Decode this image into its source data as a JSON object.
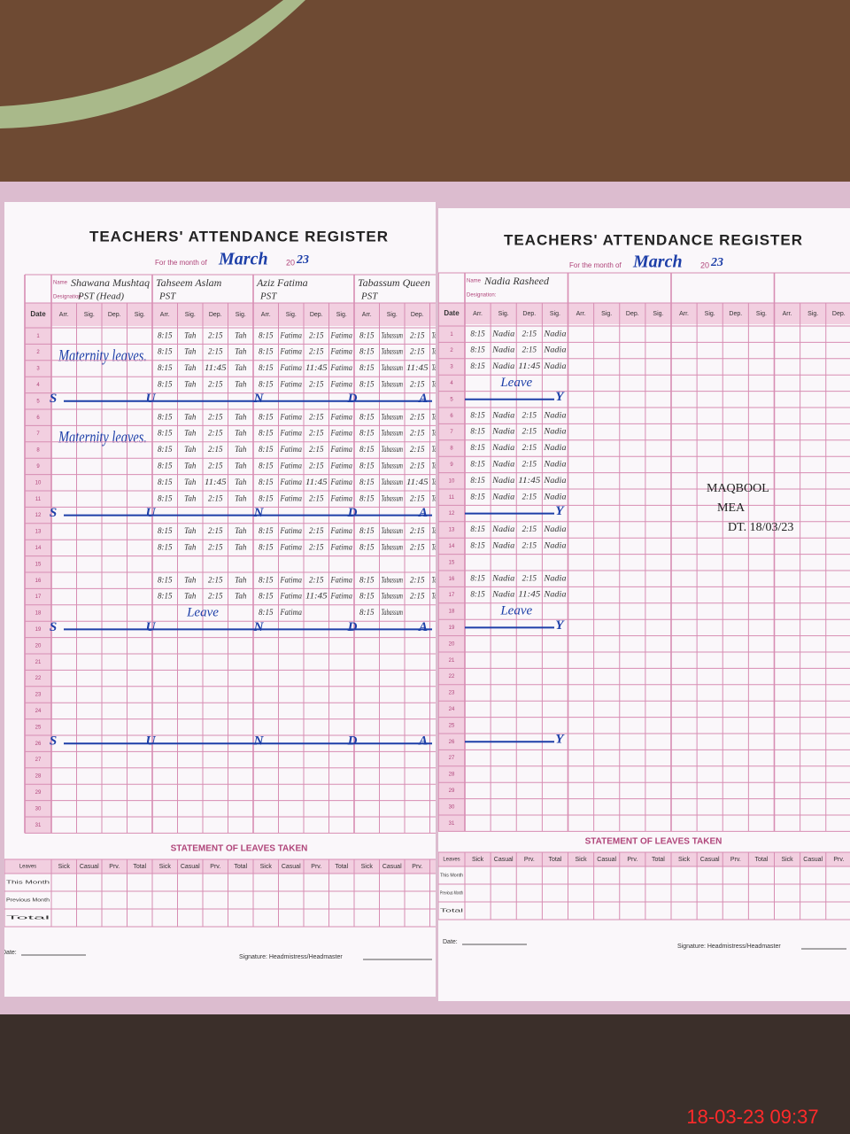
{
  "left_page": {
    "title": "TEACHERS' ATTENDANCE REGISTER",
    "month_label": "For the month of",
    "month": "March",
    "year_prefix": "20",
    "year": "23",
    "name_label": "Name",
    "designation_label": "Designation",
    "date_header": "Date",
    "column_headers": [
      "Arr.",
      "Sig.",
      "Dep.",
      "Sig."
    ],
    "dates": [
      1,
      2,
      3,
      4,
      5,
      6,
      7,
      8,
      9,
      10,
      11,
      12,
      13,
      14,
      15,
      16,
      17,
      18,
      19,
      20,
      21,
      22,
      23,
      24,
      25,
      26,
      27,
      28,
      29,
      30,
      31
    ],
    "teachers": [
      {
        "name": "Shawana Mushtaq",
        "designation": "PST (Head)",
        "notes": [
          "Maternity leaves.",
          "Maternity leaves."
        ]
      },
      {
        "name": "Tahseem Aslam",
        "designation": "PST",
        "entries": [
          [
            "8:15",
            "Tah",
            "2:15",
            "Tah"
          ],
          [
            "8:15",
            "Tah",
            "2:15",
            "Tah"
          ],
          [
            "8:15",
            "Tah",
            "11:45",
            "Tah"
          ],
          [
            "8:15",
            "Tah",
            "2:15",
            "Tah"
          ],
          null,
          [
            "8:15",
            "Tah",
            "2:15",
            "Tah"
          ],
          [
            "8:15",
            "Tah",
            "2:15",
            "Tah"
          ],
          [
            "8:15",
            "Tah",
            "2:15",
            "Tah"
          ],
          [
            "8:15",
            "Tah",
            "2:15",
            "Tah"
          ],
          [
            "8:15",
            "Tah",
            "11:45",
            "Tah"
          ],
          [
            "8:15",
            "Tah",
            "2:15",
            "Tah"
          ],
          null,
          [
            "8:15",
            "Tah",
            "2:15",
            "Tah"
          ],
          [
            "8:15",
            "Tah",
            "2:15",
            "Tah"
          ],
          null,
          [
            "8:15",
            "Tah",
            "2:15",
            "Tah"
          ],
          [
            "8:15",
            "Tah",
            "2:15",
            "Tah"
          ],
          "Leave"
        ]
      },
      {
        "name": "Aziz Fatima",
        "designation": "PST",
        "entries": [
          [
            "8:15",
            "Fatima",
            "2:15",
            "Fatima"
          ],
          [
            "8:15",
            "Fatima",
            "2:15",
            "Fatima"
          ],
          [
            "8:15",
            "Fatima",
            "11:45",
            "Fatima"
          ],
          [
            "8:15",
            "Fatima",
            "2:15",
            "Fatima"
          ],
          null,
          [
            "8:15",
            "Fatima",
            "2:15",
            "Fatima"
          ],
          [
            "8:15",
            "Fatima",
            "2:15",
            "Fatima"
          ],
          [
            "8:15",
            "Fatima",
            "2:15",
            "Fatima"
          ],
          [
            "8:15",
            "Fatima",
            "2:15",
            "Fatima"
          ],
          [
            "8:15",
            "Fatima",
            "11:45",
            "Fatima"
          ],
          [
            "8:15",
            "Fatima",
            "2:15",
            "Fatima"
          ],
          null,
          [
            "8:15",
            "Fatima",
            "2:15",
            "Fatima"
          ],
          [
            "8:15",
            "Fatima",
            "2:15",
            "Fatima"
          ],
          null,
          [
            "8:15",
            "Fatima",
            "2:15",
            "Fatima"
          ],
          [
            "8:15",
            "Fatima",
            "11:45",
            "Fatima"
          ],
          [
            "8:15",
            "Fatima",
            null,
            null
          ]
        ]
      },
      {
        "name": "Tabassum Queen",
        "designation": "PST",
        "entries": [
          [
            "8:15",
            "Tabassum",
            "2:15",
            "Tabassum"
          ],
          [
            "8:15",
            "Tabassum",
            "2:15",
            "Tabassum"
          ],
          [
            "8:15",
            "Tabassum",
            "11:45",
            "Tabassum"
          ],
          [
            "8:15",
            "Tabassum",
            "2:15",
            "Tabassum"
          ],
          null,
          [
            "8:15",
            "Tabassum",
            "2:15",
            "Tabassum"
          ],
          [
            "8:15",
            "Tabassum",
            "2:15",
            "Tabassum"
          ],
          [
            "8:15",
            "Tabassum",
            "2:15",
            "Tabassum"
          ],
          [
            "8:15",
            "Tabassum",
            "2:15",
            "Tabassum"
          ],
          [
            "8:15",
            "Tabassum",
            "11:45",
            "Tabassum"
          ],
          [
            "8:15",
            "Tabassum",
            "2:15",
            "Tabassum"
          ],
          null,
          [
            "8:15",
            "Tabassum",
            "2:15",
            "Tabassum"
          ],
          [
            "8:15",
            "Tabassum",
            "2:15",
            "Tabassum"
          ],
          null,
          [
            "8:15",
            "Tabassum",
            "2:15",
            "Tabassum"
          ],
          [
            "8:15",
            "Tabassum",
            "2:15",
            "Tabassum"
          ],
          [
            "8:15",
            "Tabassum",
            null,
            null
          ]
        ]
      }
    ],
    "sunday": {
      "dates": [
        5,
        12,
        19,
        26
      ],
      "letters": [
        "S",
        "U",
        "N",
        "D",
        "A"
      ]
    },
    "leaves": {
      "title": "STATEMENT OF LEAVES TAKEN",
      "header": "Leaves",
      "columns": [
        "Sick",
        "Casual",
        "Prv.",
        "Total"
      ],
      "rows": [
        "This Month",
        "Previous Month",
        "Total"
      ]
    },
    "date_label": "Date:",
    "signature_label": "Signature: Headmistress/Headmaster"
  },
  "right_page": {
    "title": "TEACHERS' ATTENDANCE REGISTER",
    "month_label": "For the month of",
    "month": "March",
    "year_prefix": "20",
    "year": "23",
    "name_label": "Name",
    "designation_label": "Designation:",
    "date_header": "Date",
    "column_headers": [
      "Arr.",
      "Sig.",
      "Dep.",
      "Sig."
    ],
    "dates": [
      1,
      2,
      3,
      4,
      5,
      6,
      7,
      8,
      9,
      10,
      11,
      12,
      13,
      14,
      15,
      16,
      17,
      18,
      19,
      20,
      21,
      22,
      23,
      24,
      25,
      26,
      27,
      28,
      29,
      30,
      31
    ],
    "teachers": [
      {
        "name": "Nadia Rasheed",
        "entries": [
          [
            "8:15",
            "Nadia",
            "2:15",
            "Nadia"
          ],
          [
            "8:15",
            "Nadia",
            "2:15",
            "Nadia"
          ],
          [
            "8:15",
            "Nadia",
            "11:45",
            "Nadia"
          ],
          "Leave",
          null,
          [
            "8:15",
            "Nadia",
            "2:15",
            "Nadia"
          ],
          [
            "8:15",
            "Nadia",
            "2:15",
            "Nadia"
          ],
          [
            "8:15",
            "Nadia",
            "2:15",
            "Nadia"
          ],
          [
            "8:15",
            "Nadia",
            "2:15",
            "Nadia"
          ],
          [
            "8:15",
            "Nadia",
            "11:45",
            "Nadia"
          ],
          [
            "8:15",
            "Nadia",
            "2:15",
            "Nadia"
          ],
          null,
          [
            "8:15",
            "Nadia",
            "2:15",
            "Nadia"
          ],
          [
            "8:15",
            "Nadia",
            "2:15",
            "Nadia"
          ],
          null,
          [
            "8:15",
            "Nadia",
            "2:15",
            "Nadia"
          ],
          [
            "8:15",
            "Nadia",
            "11:45",
            "Nadia"
          ],
          "Leave"
        ]
      }
    ],
    "sunday": {
      "dates": [
        5,
        12,
        19,
        26
      ],
      "letters": [
        "Y"
      ]
    },
    "stamp": [
      "MAQBOOL",
      "MEA",
      "DT. 18/03/23"
    ],
    "leaves": {
      "title": "STATEMENT OF LEAVES TAKEN",
      "header": "Leaves",
      "columns": [
        "Sick",
        "Casual",
        "Prv.",
        "Total"
      ],
      "rows": [
        "This Month",
        "Previous Month",
        "Total"
      ]
    },
    "date_label": "Date:",
    "signature_label": "Signature: Headmistress/Headmaster"
  },
  "timestamp": "18-03-23 09:37"
}
